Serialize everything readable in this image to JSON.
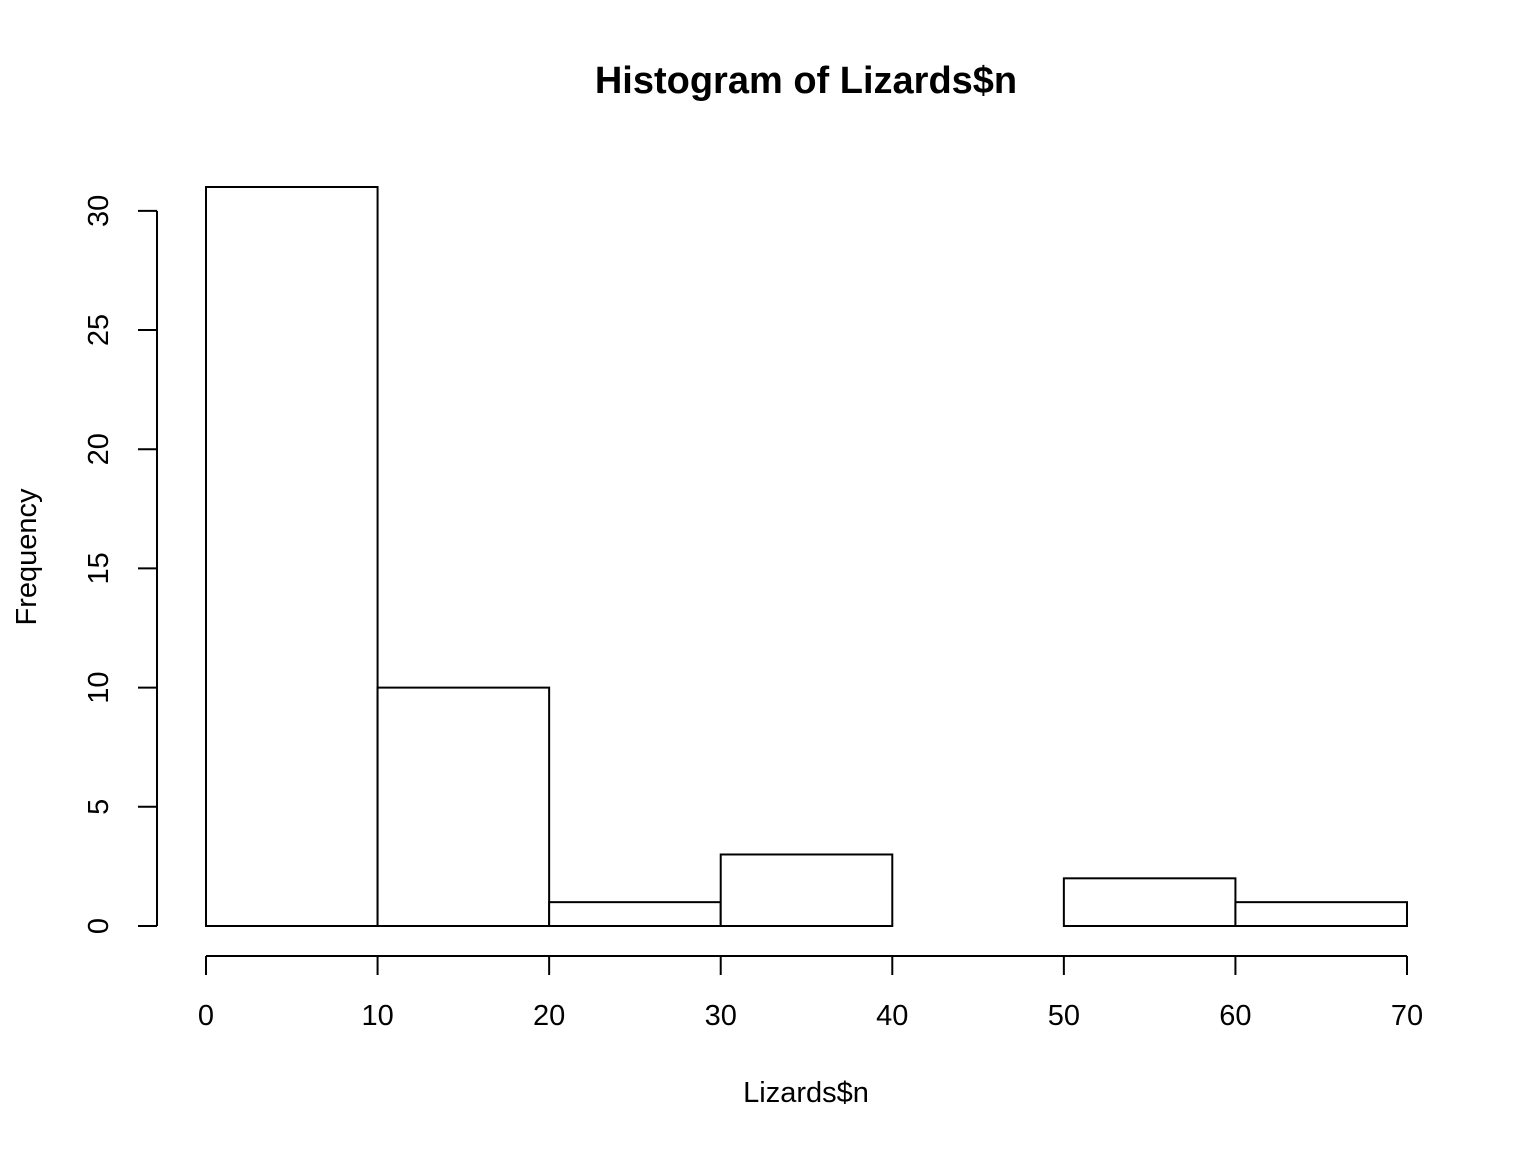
{
  "chart_data": {
    "type": "bar",
    "title": "Histogram of Lizards$n",
    "xlabel": "Lizards$n",
    "ylabel": "Frequency",
    "bins": [
      {
        "start": 0,
        "end": 10,
        "count": 31
      },
      {
        "start": 10,
        "end": 20,
        "count": 10
      },
      {
        "start": 20,
        "end": 30,
        "count": 1
      },
      {
        "start": 30,
        "end": 40,
        "count": 3
      },
      {
        "start": 40,
        "end": 50,
        "count": 0
      },
      {
        "start": 50,
        "end": 60,
        "count": 2
      },
      {
        "start": 60,
        "end": 70,
        "count": 1
      }
    ],
    "xlim": [
      0,
      70
    ],
    "ylim": [
      0,
      31
    ],
    "xticks": [
      "0",
      "10",
      "20",
      "30",
      "40",
      "50",
      "60",
      "70"
    ],
    "yticks": [
      "0",
      "5",
      "10",
      "15",
      "20",
      "25",
      "30"
    ],
    "grid": false,
    "bar_fill": "#ffffff",
    "bar_stroke": "#000000"
  }
}
